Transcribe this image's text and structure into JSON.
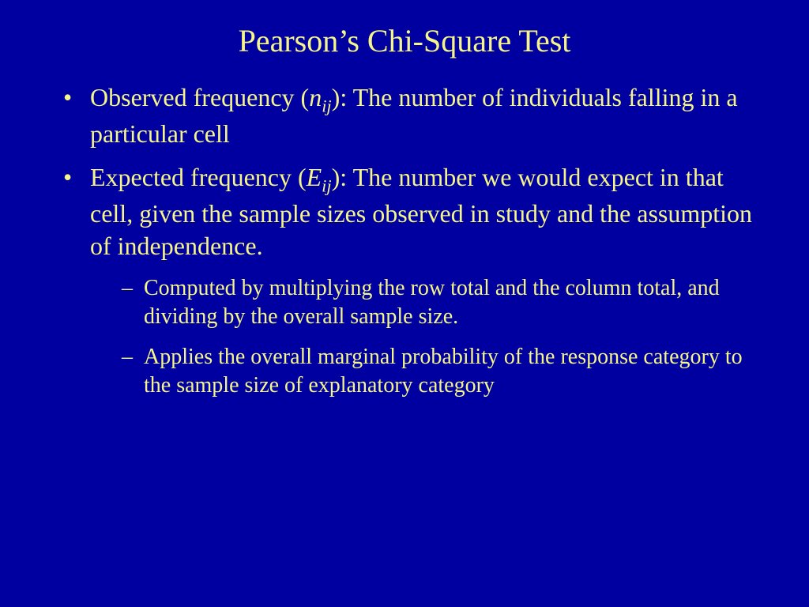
{
  "colors": {
    "background": "#0000a0",
    "text": "#f5f58a"
  },
  "typography": {
    "font_family": "Times New Roman",
    "title_fontsize": 40,
    "body_fontsize": 32,
    "sub_body_fontsize": 28
  },
  "title": "Pearson’s Chi-Square Test",
  "bullets": [
    {
      "prefix": "Observed frequency (",
      "var": "n",
      "sub": "ij",
      "suffix": "): The number of individuals falling in a particular cell",
      "children": []
    },
    {
      "prefix": "Expected frequency (",
      "var": "E",
      "sub": "ij",
      "suffix": "): The number we would expect in that cell, given the sample sizes observed in study and the assumption of independence.",
      "children": [
        "Computed by multiplying the row total and the column total, and dividing by the overall sample size.",
        "Applies the overall marginal probability of the response category to the sample size of explanatory category"
      ]
    }
  ]
}
